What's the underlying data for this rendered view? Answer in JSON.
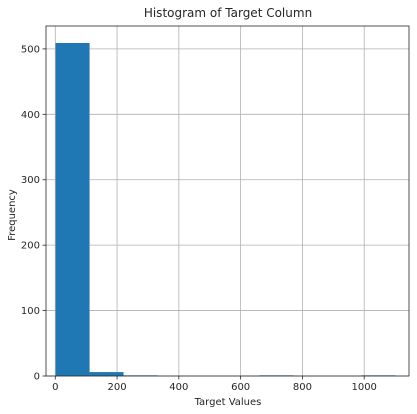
{
  "chart_data": {
    "type": "bar",
    "title": "Histogram of Target Column",
    "xlabel": "Target Values",
    "ylabel": "Frequency",
    "xlim": [
      -30,
      1145
    ],
    "ylim": [
      0,
      535
    ],
    "grid": true,
    "bar_color": "#1f77b4",
    "xticks": [
      0,
      200,
      400,
      600,
      800,
      1000
    ],
    "yticks": [
      0,
      100,
      200,
      300,
      400,
      500
    ],
    "bins": [
      {
        "x0": 1,
        "x1": 111,
        "value": 509
      },
      {
        "x0": 111,
        "x1": 221,
        "value": 6
      },
      {
        "x0": 221,
        "x1": 331,
        "value": 1
      },
      {
        "x0": 331,
        "x1": 441,
        "value": 0
      },
      {
        "x0": 441,
        "x1": 551,
        "value": 0
      },
      {
        "x0": 551,
        "x1": 661,
        "value": 0
      },
      {
        "x0": 661,
        "x1": 771,
        "value": 1
      },
      {
        "x0": 771,
        "x1": 881,
        "value": 0
      },
      {
        "x0": 881,
        "x1": 991,
        "value": 0
      },
      {
        "x0": 991,
        "x1": 1101,
        "value": 1
      }
    ]
  }
}
